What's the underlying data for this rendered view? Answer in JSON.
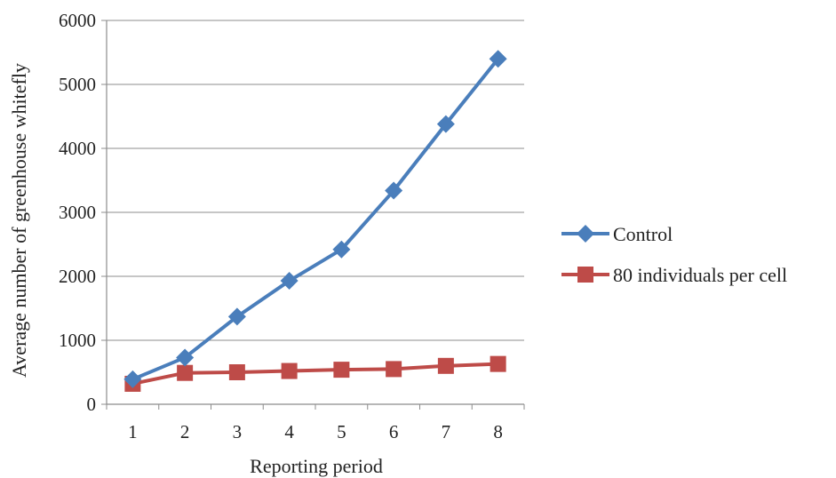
{
  "chart_data": {
    "type": "line",
    "title": "",
    "xlabel": "Reporting period",
    "ylabel": "Average number of greenhouse whitefly",
    "categories": [
      "1",
      "2",
      "3",
      "4",
      "5",
      "6",
      "7",
      "8"
    ],
    "ylim": [
      0,
      6000
    ],
    "yticks": [
      0,
      1000,
      2000,
      3000,
      4000,
      5000,
      6000
    ],
    "ytick_labels": [
      "0",
      "1000",
      "2000",
      "3000",
      "4000",
      "5000",
      "6000"
    ],
    "grid": "horizontal",
    "legend_position": "right",
    "series": [
      {
        "name": "Control",
        "marker": "diamond",
        "color": "#4a7ebb",
        "values": [
          390,
          730,
          1370,
          1930,
          2420,
          3340,
          4380,
          5400
        ]
      },
      {
        "name": "80 individuals per cell",
        "marker": "square",
        "color": "#be4b48",
        "values": [
          320,
          490,
          500,
          520,
          540,
          550,
          600,
          630
        ]
      }
    ]
  }
}
